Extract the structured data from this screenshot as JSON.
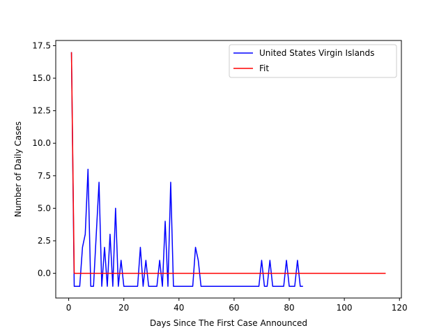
{
  "chart_data": {
    "type": "line",
    "title": "",
    "xlabel": "Days Since The First Case Announced",
    "ylabel": "Number of Daily Cases",
    "xlim": [
      -4.7,
      120.7
    ],
    "ylim": [
      -1.9,
      17.9
    ],
    "xticks": [
      0,
      20,
      40,
      60,
      80,
      100,
      120
    ],
    "yticks": [
      0.0,
      2.5,
      5.0,
      7.5,
      10.0,
      12.5,
      15.0,
      17.5
    ],
    "ytick_labels": [
      "0.0",
      "2.5",
      "5.0",
      "7.5",
      "10.0",
      "12.5",
      "15.0",
      "17.5"
    ],
    "grid": false,
    "legend_position": "top-right",
    "series": [
      {
        "name": "United States Virgin Islands",
        "color": "#0000ff",
        "x": [
          1,
          2,
          3,
          4,
          5,
          6,
          7,
          8,
          9,
          10,
          11,
          12,
          13,
          14,
          15,
          16,
          17,
          18,
          19,
          20,
          21,
          22,
          23,
          24,
          25,
          26,
          27,
          28,
          29,
          30,
          31,
          32,
          33,
          34,
          35,
          36,
          37,
          38,
          39,
          40,
          41,
          42,
          43,
          44,
          45,
          46,
          47,
          48,
          49,
          50,
          51,
          52,
          53,
          54,
          55,
          56,
          57,
          58,
          59,
          60,
          61,
          62,
          63,
          64,
          65,
          66,
          67,
          68,
          69,
          70,
          71,
          72,
          73,
          74,
          75,
          76,
          77,
          78,
          79,
          80,
          81,
          82,
          83,
          84,
          85
        ],
        "y": [
          17,
          -1,
          -1,
          -1,
          2,
          3,
          8,
          -1,
          -1,
          3,
          7,
          -1,
          2,
          -1,
          3,
          -1,
          5,
          -1,
          1,
          -1,
          -1,
          -1,
          -1,
          -1,
          -1,
          2,
          -1,
          1,
          -1,
          -1,
          -1,
          -1,
          1,
          -1,
          4,
          -1,
          7,
          -1,
          -1,
          -1,
          -1,
          -1,
          -1,
          -1,
          -1,
          2,
          1,
          -1,
          -1,
          -1,
          -1,
          -1,
          -1,
          -1,
          -1,
          -1,
          -1,
          -1,
          -1,
          -1,
          -1,
          -1,
          -1,
          -1,
          -1,
          -1,
          -1,
          -1,
          -1,
          1,
          -1,
          -1,
          1,
          -1,
          -1,
          -1,
          -1,
          -1,
          1,
          -1,
          -1,
          -1,
          1,
          -1,
          -1
        ]
      },
      {
        "name": "Fit",
        "color": "#ff0000",
        "x": [
          1,
          2,
          115
        ],
        "y": [
          17,
          0,
          0
        ]
      }
    ]
  }
}
